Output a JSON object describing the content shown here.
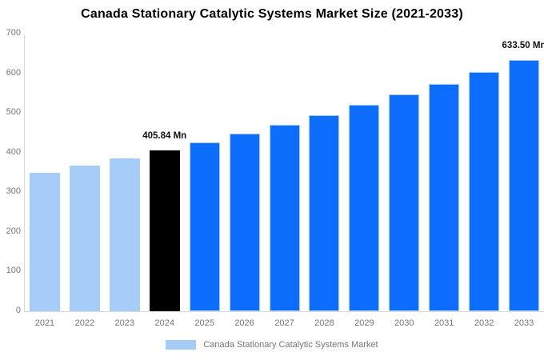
{
  "chart_data": {
    "type": "bar",
    "title": "Canada Stationary Catalytic Systems Market Size (2021-2033)",
    "categories": [
      "2021",
      "2022",
      "2023",
      "2024",
      "2025",
      "2026",
      "2027",
      "2028",
      "2029",
      "2030",
      "2031",
      "2032",
      "2033"
    ],
    "values": [
      349.86,
      367.6,
      386.25,
      405.84,
      426.43,
      448.06,
      470.79,
      494.67,
      519.76,
      546.13,
      573.83,
      602.93,
      633.5
    ],
    "unit": "Mn",
    "xlabel": "",
    "ylabel": "",
    "ylim": [
      0,
      700
    ],
    "yticks": [
      0,
      100,
      200,
      300,
      400,
      500,
      600,
      700
    ],
    "grid": false,
    "legend": {
      "label": "Canada Stationary Catalytic Systems Market",
      "position": "bottom",
      "swatch_color": "#A6CDF8"
    },
    "colors": {
      "historical": "#A6CDF8",
      "highlight": "#000000",
      "forecast": "#0D6EFD",
      "bar_border": "#A6CDF8",
      "axis_line": "#D9D9D9",
      "tick_label": "#757575"
    },
    "bar_color_roles": [
      "historical",
      "historical",
      "historical",
      "highlight",
      "forecast",
      "forecast",
      "forecast",
      "forecast",
      "forecast",
      "forecast",
      "forecast",
      "forecast",
      "forecast"
    ],
    "annotations": [
      {
        "category": "2024",
        "text": "405.84 Mn"
      },
      {
        "category": "2033",
        "text": "633.50 Mn"
      }
    ]
  }
}
